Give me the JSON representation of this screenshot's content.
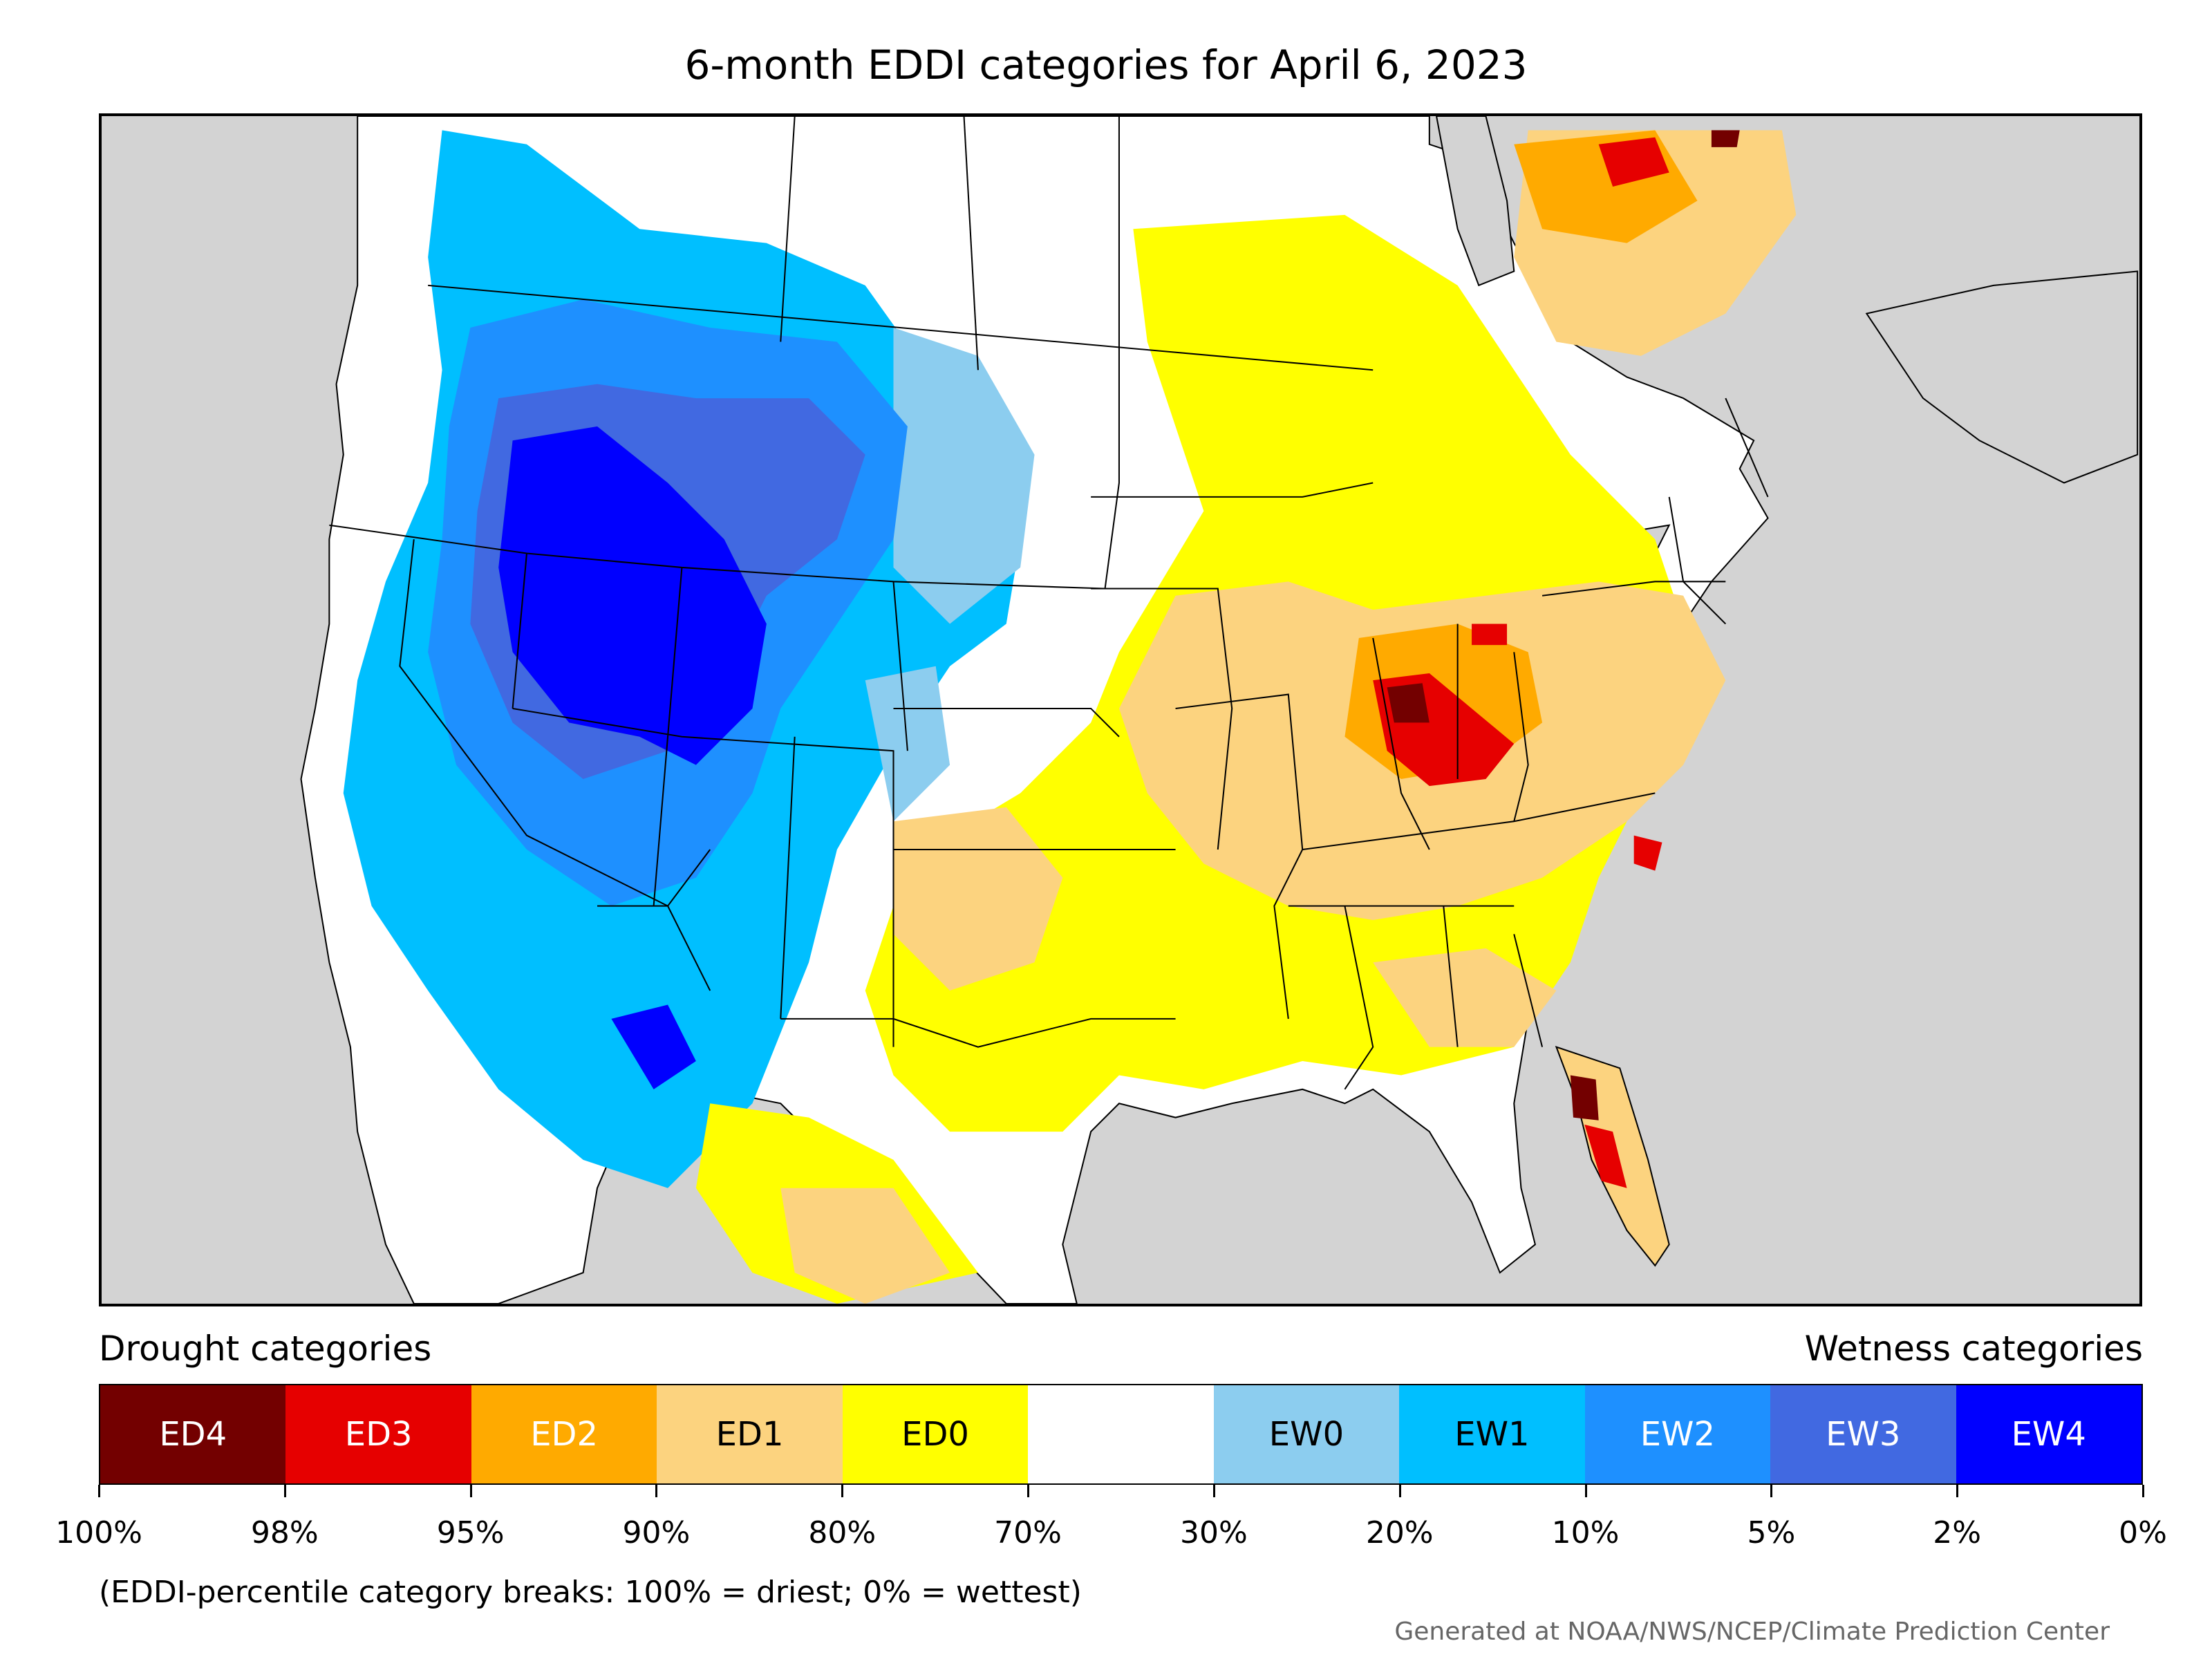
{
  "title": "6-month EDDI categories for April 6, 2023",
  "legend": {
    "drought_heading": "Drought categories",
    "wetness_heading": "Wetness categories",
    "categories": [
      {
        "label": "ED4",
        "color": "#730000",
        "text_color": "#ffffff"
      },
      {
        "label": "ED3",
        "color": "#e60000",
        "text_color": "#ffffff"
      },
      {
        "label": "ED2",
        "color": "#ffaa00",
        "text_color": "#ffffff"
      },
      {
        "label": "ED1",
        "color": "#fcd37f",
        "text_color": "#000000"
      },
      {
        "label": "ED0",
        "color": "#ffff00",
        "text_color": "#000000"
      },
      {
        "label": "",
        "color": "#ffffff",
        "text_color": "#000000"
      },
      {
        "label": "EW0",
        "color": "#8ccdef",
        "text_color": "#000000"
      },
      {
        "label": "EW1",
        "color": "#00bfff",
        "text_color": "#000000"
      },
      {
        "label": "EW2",
        "color": "#1e90ff",
        "text_color": "#ffffff"
      },
      {
        "label": "EW3",
        "color": "#4169e1",
        "text_color": "#ffffff"
      },
      {
        "label": "EW4",
        "color": "#0000ff",
        "text_color": "#ffffff"
      }
    ],
    "ticks": [
      "100%",
      "98%",
      "95%",
      "90%",
      "80%",
      "70%",
      "30%",
      "20%",
      "10%",
      "5%",
      "2%",
      "0%"
    ]
  },
  "footnote": "(EDDI-percentile category breaks: 100% = driest; 0% = wettest)",
  "credit": "Generated at NOAA/NWS/NCEP/Climate Prediction Center",
  "map_colors": {
    "ocean_bg": "#d3d3d3",
    "land": "#ffffff",
    "border": "#000000"
  }
}
